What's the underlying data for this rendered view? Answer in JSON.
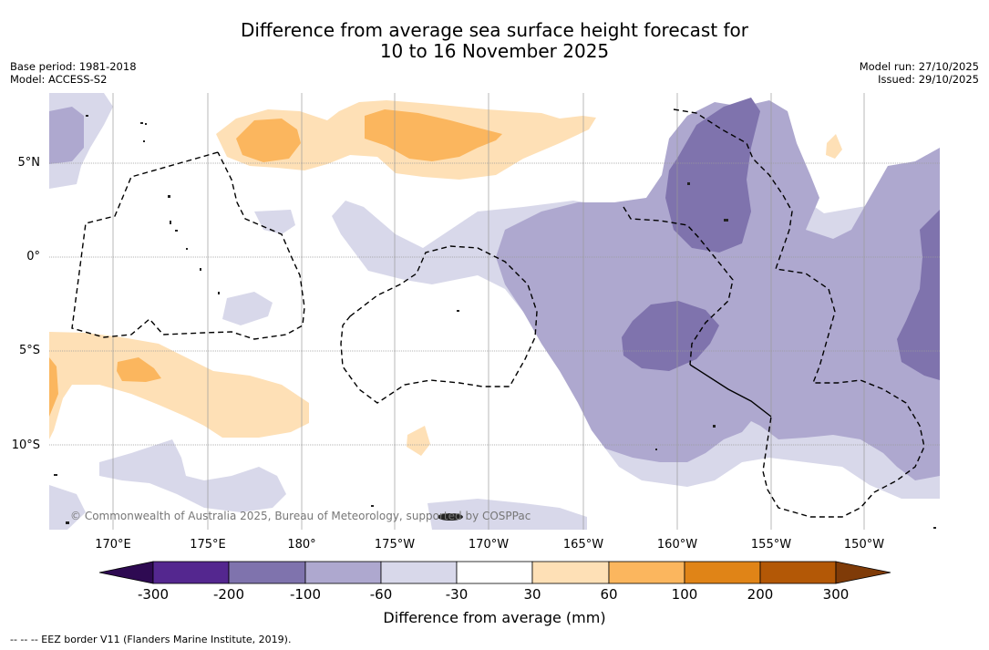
{
  "title": {
    "line1": "Difference from average sea surface height forecast for",
    "line2": "10 to 16 November 2025"
  },
  "meta": {
    "base_period": "Base period: 1981-2018",
    "model": "Model: ACCESS-S2",
    "model_run": "Model run: 27/10/2025",
    "issued": "Issued: 29/10/2025"
  },
  "map": {
    "latitude_labels": [
      "5°N",
      "0°",
      "5°S",
      "10°S"
    ],
    "longitude_labels": [
      "170°E",
      "175°E",
      "180°",
      "175°W",
      "170°W",
      "165°W",
      "160°W",
      "155°W",
      "150°W"
    ],
    "credit": "© Commonwealth of Australia 2025, Bureau of Meteorology, supported by COSPPac"
  },
  "colorbar": {
    "label": "Difference from average (mm)",
    "ticks": [
      "-300",
      "-200",
      "-100",
      "-60",
      "-30",
      "30",
      "60",
      "100",
      "200",
      "300"
    ],
    "colors": {
      "below_min": "#2e0a52",
      "m300_m200": "#54278f",
      "m200_m100": "#7f73ad",
      "m100_m60": "#aea8cf",
      "m60_m30": "#d8d8ea",
      "m30_30": "#ffffff",
      "p30_p60": "#fee0b6",
      "p60_p100": "#fbb65e",
      "p100_p200": "#e08417",
      "p200_p300": "#b35806",
      "above_max": "#7f3b08"
    }
  },
  "footnote": "--  --  -- EEZ border V11 (Flanders Marine Institute, 2019)."
}
